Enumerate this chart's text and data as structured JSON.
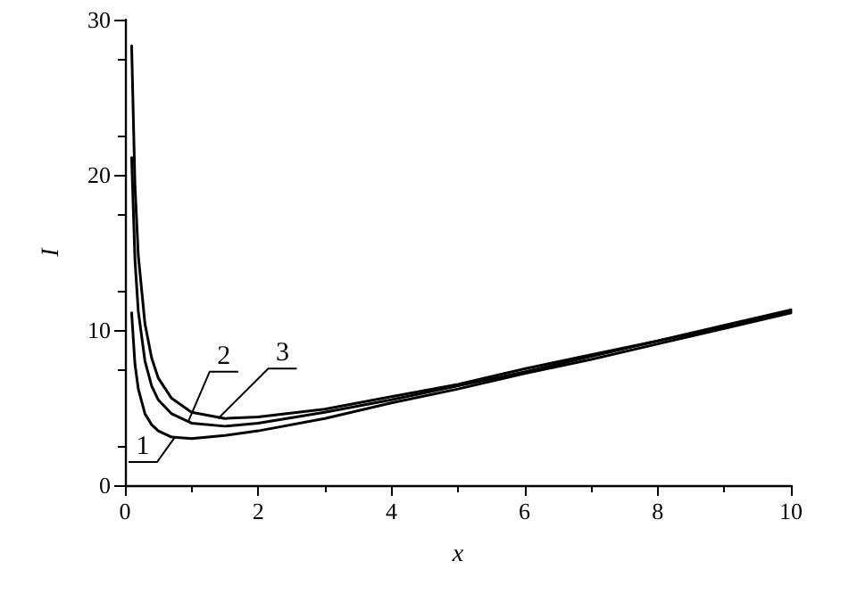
{
  "chart_data": {
    "type": "line",
    "xlabel": "x",
    "ylabel": "I",
    "xlim": [
      0,
      10
    ],
    "ylim": [
      0,
      30
    ],
    "xticks": [
      0,
      2,
      4,
      6,
      8,
      10
    ],
    "yticks": [
      0,
      10,
      20,
      30
    ],
    "marker": "none",
    "line_style": "solid",
    "x": [
      0.1,
      0.15,
      0.2,
      0.3,
      0.4,
      0.5,
      0.7,
      1,
      1.5,
      2,
      3,
      4,
      5,
      6,
      7,
      8,
      9,
      10
    ],
    "series": [
      {
        "color": "#000000",
        "values": [
          11.1,
          7.8,
          6.2,
          4.6,
          3.9,
          3.5,
          3.1,
          3.0,
          3.2,
          3.5,
          4.3,
          5.3,
          6.2,
          7.2,
          8.1,
          9.1,
          10.1,
          11.1
        ]
      },
      {
        "color": "#000000",
        "values": [
          21.1,
          14.5,
          11.2,
          8.0,
          6.4,
          5.5,
          4.6,
          4.0,
          3.8,
          4.0,
          4.7,
          5.5,
          6.4,
          7.3,
          8.3,
          9.3,
          10.2,
          11.2
        ]
      },
      {
        "color": "#000000",
        "values": [
          28.3,
          19.3,
          14.8,
          10.4,
          8.2,
          6.9,
          5.6,
          4.7,
          4.3,
          4.4,
          4.9,
          5.7,
          6.5,
          7.5,
          8.4,
          9.3,
          10.3,
          11.3
        ]
      }
    ],
    "annotations": [
      {
        "text": "1",
        "x": 0.75,
        "y": 3.1
      },
      {
        "text": "2",
        "x": 0.95,
        "y": 4.1
      },
      {
        "text": "3",
        "x": 1.4,
        "y": 4.3
      }
    ]
  }
}
